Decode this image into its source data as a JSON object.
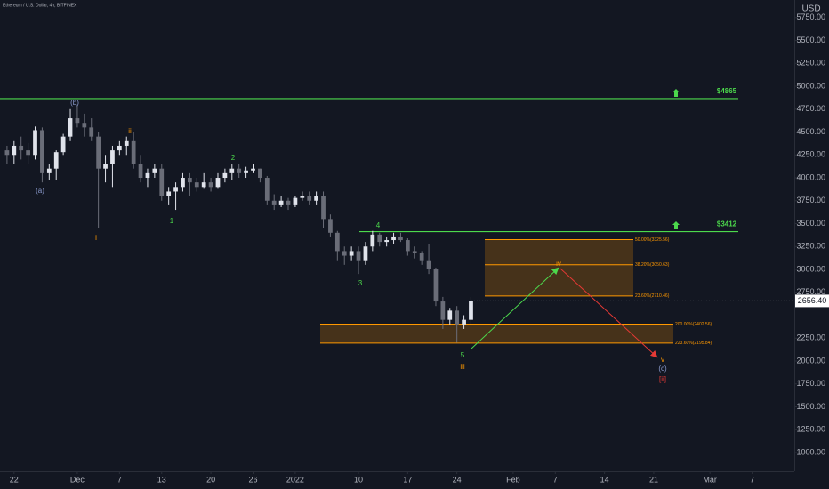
{
  "chart_data": {
    "type": "candlestick",
    "title": "Ethereum / U.S. Dollar, 4h, BITFINEX",
    "y_axis_label": "USD",
    "background": "#131722",
    "up_color": "#e0e3eb",
    "down_color": "#6a6d78",
    "grid": false,
    "xlim": [
      "2021-11-20",
      "2022-03-13"
    ],
    "ylim": [
      796,
      5942
    ],
    "xticks": [
      {
        "value": "2021-11-22",
        "label": "22"
      },
      {
        "value": "2021-12-01",
        "label": "Dec"
      },
      {
        "value": "2021-12-07",
        "label": "7"
      },
      {
        "value": "2021-12-13",
        "label": "13"
      },
      {
        "value": "2021-12-20",
        "label": "20"
      },
      {
        "value": "2021-12-26",
        "label": "26"
      },
      {
        "value": "2022-01-01",
        "label": "2022"
      },
      {
        "value": "2022-01-10",
        "label": "10"
      },
      {
        "value": "2022-01-17",
        "label": "17"
      },
      {
        "value": "2022-01-24",
        "label": "24"
      },
      {
        "value": "2022-02-01",
        "label": "Feb"
      },
      {
        "value": "2022-02-07",
        "label": "7"
      },
      {
        "value": "2022-02-14",
        "label": "14"
      },
      {
        "value": "2022-02-21",
        "label": "21"
      },
      {
        "value": "2022-03-01",
        "label": "Mar"
      },
      {
        "value": "2022-03-07",
        "label": "7"
      }
    ],
    "yticks": [
      {
        "value": 1000,
        "label": "1000.00"
      },
      {
        "value": 1250,
        "label": "1250.00"
      },
      {
        "value": 1500,
        "label": "1500.00"
      },
      {
        "value": 1750,
        "label": "1750.00"
      },
      {
        "value": 2000,
        "label": "2000.00"
      },
      {
        "value": 2250,
        "label": "2250.00"
      },
      {
        "value": 2750,
        "label": "2750.00"
      },
      {
        "value": 3000,
        "label": "3000.00"
      },
      {
        "value": 3250,
        "label": "3250.00"
      },
      {
        "value": 3500,
        "label": "3500.00"
      },
      {
        "value": 3750,
        "label": "3750.00"
      },
      {
        "value": 4000,
        "label": "4000.00"
      },
      {
        "value": 4250,
        "label": "4250.00"
      },
      {
        "value": 4500,
        "label": "4500.00"
      },
      {
        "value": 4750,
        "label": "4750.00"
      },
      {
        "value": 5000,
        "label": "5000.00"
      },
      {
        "value": 5250,
        "label": "5250.00"
      },
      {
        "value": 5500,
        "label": "5500.00"
      },
      {
        "value": 5750,
        "label": "5750.00"
      }
    ],
    "x": [
      "2021-11-21",
      "2021-11-22",
      "2021-11-23",
      "2021-11-24",
      "2021-11-25",
      "2021-11-26",
      "2021-11-27",
      "2021-11-28",
      "2021-11-29",
      "2021-11-30",
      "2021-12-01",
      "2021-12-02",
      "2021-12-03",
      "2021-12-04",
      "2021-12-05",
      "2021-12-06",
      "2021-12-07",
      "2021-12-08",
      "2021-12-09",
      "2021-12-10",
      "2021-12-11",
      "2021-12-12",
      "2021-12-13",
      "2021-12-14",
      "2021-12-15",
      "2021-12-16",
      "2021-12-17",
      "2021-12-18",
      "2021-12-19",
      "2021-12-20",
      "2021-12-21",
      "2021-12-22",
      "2021-12-23",
      "2021-12-24",
      "2021-12-25",
      "2021-12-26",
      "2021-12-27",
      "2021-12-28",
      "2021-12-29",
      "2021-12-30",
      "2021-12-31",
      "2022-01-01",
      "2022-01-02",
      "2022-01-03",
      "2022-01-04",
      "2022-01-05",
      "2022-01-06",
      "2022-01-07",
      "2022-01-08",
      "2022-01-09",
      "2022-01-10",
      "2022-01-11",
      "2022-01-12",
      "2022-01-13",
      "2022-01-14",
      "2022-01-15",
      "2022-01-16",
      "2022-01-17",
      "2022-01-18",
      "2022-01-19",
      "2022-01-20",
      "2022-01-21",
      "2022-01-22",
      "2022-01-23",
      "2022-01-24",
      "2022-01-25",
      "2022-01-26"
    ],
    "open": [
      4300,
      4250,
      4350,
      4300,
      4250,
      4520,
      4050,
      4100,
      4280,
      4450,
      4650,
      4600,
      4550,
      4450,
      4100,
      4150,
      4300,
      4350,
      4400,
      4150,
      4000,
      4050,
      4100,
      3800,
      3850,
      3900,
      4000,
      3950,
      3900,
      3950,
      3900,
      4000,
      4050,
      4100,
      4050,
      4080,
      4100,
      4000,
      3750,
      3700,
      3750,
      3700,
      3780,
      3800,
      3750,
      3800,
      3550,
      3400,
      3200,
      3150,
      3200,
      3100,
      3250,
      3380,
      3300,
      3320,
      3350,
      3320,
      3200,
      3180,
      3100,
      3000,
      2650,
      2450,
      2550,
      2400,
      2450
    ],
    "high": [
      4350,
      4400,
      4450,
      4380,
      4560,
      4550,
      4150,
      4300,
      4480,
      4750,
      4800,
      4700,
      4650,
      4500,
      4250,
      4350,
      4400,
      4450,
      4500,
      4250,
      4100,
      4150,
      4150,
      3900,
      3950,
      4050,
      4050,
      4000,
      4050,
      4000,
      4050,
      4100,
      4150,
      4150,
      4120,
      4150,
      4100,
      4020,
      3820,
      3800,
      3780,
      3800,
      3850,
      3850,
      3850,
      3850,
      3600,
      3420,
      3250,
      3250,
      3250,
      3300,
      3420,
      3400,
      3350,
      3400,
      3400,
      3340,
      3250,
      3200,
      3280,
      3020,
      2700,
      2580,
      2600,
      2500,
      2700
    ],
    "low": [
      4150,
      4150,
      4200,
      4150,
      4200,
      3950,
      3980,
      3980,
      4250,
      4400,
      4550,
      4450,
      4400,
      3450,
      3950,
      3900,
      4250,
      4250,
      4100,
      3950,
      3900,
      4000,
      3750,
      3700,
      3650,
      3850,
      3800,
      3850,
      3880,
      3850,
      3880,
      3950,
      3980,
      4000,
      4000,
      4050,
      3950,
      3700,
      3650,
      3680,
      3650,
      3680,
      3750,
      3700,
      3700,
      3450,
      3350,
      3100,
      3050,
      3100,
      2950,
      3050,
      3200,
      3250,
      3250,
      3280,
      3300,
      3150,
      3120,
      3050,
      2950,
      2600,
      2350,
      2400,
      2200,
      2350,
      2400
    ],
    "close": [
      4250,
      4350,
      4300,
      4250,
      4520,
      4050,
      4100,
      4280,
      4450,
      4650,
      4600,
      4550,
      4450,
      4100,
      4150,
      4300,
      4350,
      4400,
      4150,
      4000,
      4050,
      4100,
      3800,
      3850,
      3900,
      4000,
      3950,
      3900,
      3950,
      3900,
      4000,
      4050,
      4100,
      4050,
      4080,
      4100,
      4000,
      3750,
      3700,
      3750,
      3700,
      3780,
      3800,
      3750,
      3800,
      3550,
      3400,
      3200,
      3150,
      3200,
      3100,
      3250,
      3380,
      3300,
      3320,
      3350,
      3320,
      3200,
      3180,
      3100,
      3000,
      2650,
      2450,
      2550,
      2400,
      2450,
      2656.4
    ],
    "last_price": {
      "value": 2656.4,
      "label": "2656.40"
    },
    "levels": [
      {
        "label": "$4865",
        "value": 4865,
        "color": "#4cd94c"
      },
      {
        "label": "$3412",
        "value": 3412,
        "color": "#4cd94c"
      }
    ],
    "fib_zones": [
      {
        "color": "#ff9800",
        "levels": [
          {
            "label": "50.00%(3325.56)",
            "value": 3325.56
          },
          {
            "label": "38.20%(3050.63)",
            "value": 3050.63
          },
          {
            "label": "23.60%(2710.46)",
            "value": 2710.46
          }
        ]
      },
      {
        "color": "#ff9800",
        "levels": [
          {
            "label": "200.00%(2402.56)",
            "value": 2402.56
          },
          {
            "label": "223.60%(2195.84)",
            "value": 2195.84
          }
        ]
      }
    ],
    "wave_labels": [
      {
        "label": "(a)",
        "color": "#8c9ccf"
      },
      {
        "label": "(b)",
        "color": "#8c9ccf"
      },
      {
        "label": "i",
        "color": "#ff9800"
      },
      {
        "label": "ii",
        "color": "#ff9800"
      },
      {
        "label": "1",
        "color": "#4cd94c"
      },
      {
        "label": "2",
        "color": "#4cd94c"
      },
      {
        "label": "3",
        "color": "#4cd94c"
      },
      {
        "label": "4",
        "color": "#4cd94c"
      },
      {
        "label": "5",
        "color": "#4cd94c"
      },
      {
        "label": "iii",
        "color": "#ff9800"
      },
      {
        "label": "iv",
        "color": "#ff9800"
      },
      {
        "label": "v",
        "color": "#ff9800"
      },
      {
        "label": "(c)",
        "color": "#8c9ccf"
      },
      {
        "label": "[ii]",
        "color": "#e53935"
      }
    ]
  }
}
